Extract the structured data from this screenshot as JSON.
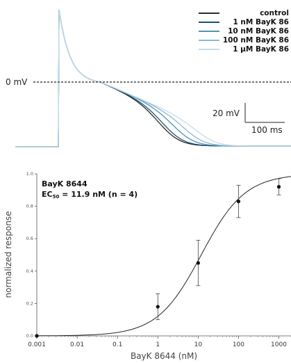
{
  "chart_data": [
    {
      "type": "line",
      "zero_label": "0 mV",
      "scale_bar": {
        "voltage_label": "20 mV",
        "time_label": "100 ms"
      },
      "series": [
        {
          "name": "control",
          "color": "#2b2b2b",
          "apd_shift": 0
        },
        {
          "name": "1 nM BayK 86",
          "color": "#1d4f6e",
          "apd_shift": 6
        },
        {
          "name": "10 nM BayK 86",
          "color": "#4f93b5",
          "apd_shift": 22
        },
        {
          "name": "100 nM BayK 86",
          "color": "#89b9d3",
          "apd_shift": 38
        },
        {
          "name": "1 µM BayK 86",
          "color": "#c4dcea",
          "apd_shift": 58
        }
      ]
    },
    {
      "type": "scatter",
      "title": "BayK 8644",
      "subtitle_prefix": "EC",
      "subtitle_sub": "50",
      "subtitle_suffix": " = 11.9 nM (n = 4)",
      "xlabel": "BayK 8644 (nM)",
      "ylabel": "normalized response",
      "xscale": "log",
      "xlim": [
        0.001,
        2000
      ],
      "ylim": [
        0,
        1.0
      ],
      "xticks": [
        0.001,
        0.01,
        0.1,
        1,
        10,
        100,
        1000
      ],
      "xtick_labels": [
        "0.001",
        "0.01",
        "0.1",
        "1",
        "10",
        "100",
        "1000"
      ],
      "yticks": [
        0,
        0.2,
        0.4,
        0.6,
        0.8,
        1.0
      ],
      "ytick_labels": [
        "0.0",
        "0.2",
        "0.4",
        "0.6",
        "0.8",
        "1.0"
      ],
      "points": [
        {
          "x": 0.001,
          "y": 0.0,
          "err": 0
        },
        {
          "x": 1,
          "y": 0.18,
          "err": 0.08
        },
        {
          "x": 10,
          "y": 0.45,
          "err": 0.14
        },
        {
          "x": 100,
          "y": 0.83,
          "err": 0.1
        },
        {
          "x": 1000,
          "y": 0.92,
          "err": 0.05
        }
      ],
      "fit": {
        "ec50": 11.9,
        "hill": 0.8
      }
    }
  ]
}
